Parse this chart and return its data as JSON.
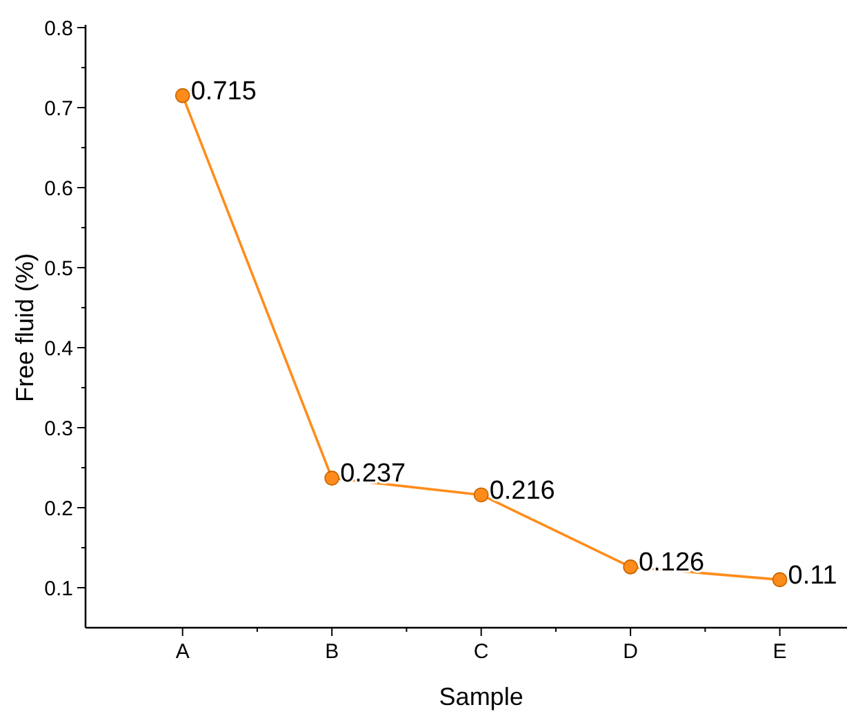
{
  "chart_data": {
    "type": "line",
    "xlabel": "Sample",
    "ylabel": "Free fluid (%)",
    "categories": [
      "A",
      "B",
      "C",
      "D",
      "E"
    ],
    "series": [
      {
        "color": "#ff8c1a",
        "values": [
          0.715,
          0.237,
          0.216,
          0.126,
          0.11
        ]
      }
    ],
    "ylim": [
      0.05,
      0.8
    ],
    "yticks": [
      0.1,
      0.2,
      0.3,
      0.4,
      0.5,
      0.6,
      0.7,
      0.8
    ],
    "marker": "circle",
    "data_labels": true,
    "grid": false
  }
}
